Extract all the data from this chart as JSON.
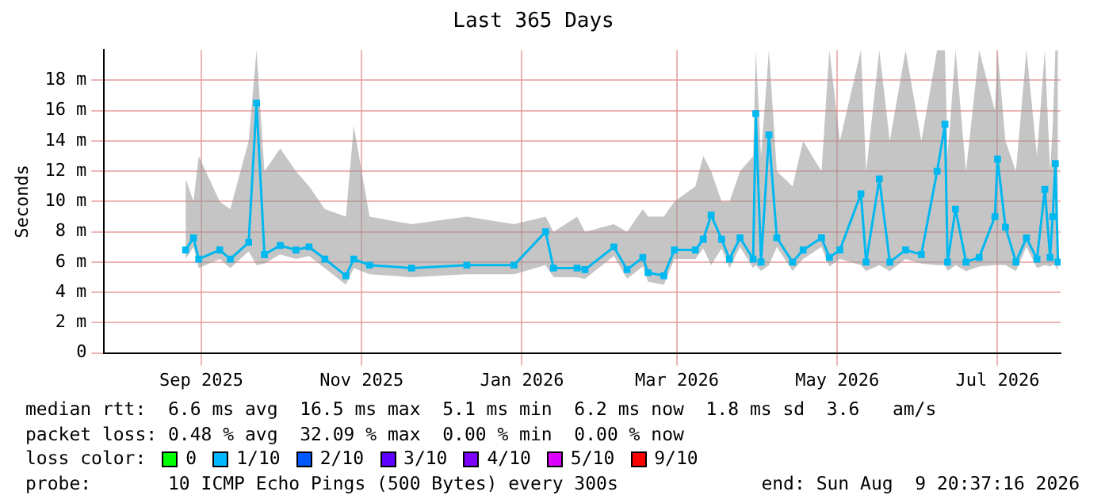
{
  "chart_data": {
    "type": "line",
    "title": "Last 365 Days",
    "ylabel": "Seconds",
    "xlim": [
      "2025-08-10",
      "2026-08-09"
    ],
    "xticks": [
      {
        "value": "2025-09-16",
        "label": "Sep 2025"
      },
      {
        "value": "2025-11-16",
        "label": "Nov 2025"
      },
      {
        "value": "2026-01-16",
        "label": "Jan 2026"
      },
      {
        "value": "2026-03-16",
        "label": "Mar 2026"
      },
      {
        "value": "2026-05-16",
        "label": "May 2026"
      },
      {
        "value": "2026-07-16",
        "label": "Jul 2026"
      }
    ],
    "ylim": [
      0,
      20
    ],
    "yticks": [
      0,
      {
        "value": 2,
        "label": "2 m"
      },
      {
        "value": 4,
        "label": "4 m"
      },
      {
        "value": 6,
        "label": "6 m"
      },
      {
        "value": 8,
        "label": "8 m"
      },
      {
        "value": 10,
        "label": "10 m"
      },
      {
        "value": 12,
        "label": "12 m"
      },
      {
        "value": 14,
        "label": "14 m"
      },
      {
        "value": 16,
        "label": "16 m"
      },
      {
        "value": 18,
        "label": "18 m"
      }
    ],
    "grid": true,
    "marker": "square",
    "line_style": "solid",
    "x": [
      "2025-09-10",
      "2025-09-13",
      "2025-09-15",
      "2025-09-23",
      "2025-09-27",
      "2025-10-04",
      "2025-10-07",
      "2025-10-10",
      "2025-10-16",
      "2025-10-22",
      "2025-10-27",
      "2025-11-02",
      "2025-11-10",
      "2025-11-13",
      "2025-11-19",
      "2025-12-05",
      "2025-12-26",
      "2026-01-13",
      "2026-01-25",
      "2026-01-28",
      "2026-02-06",
      "2026-02-09",
      "2026-02-20",
      "2026-02-25",
      "2026-03-03",
      "2026-03-05",
      "2026-03-11",
      "2026-03-15",
      "2026-03-23",
      "2026-03-26",
      "2026-03-29",
      "2026-04-02",
      "2026-04-05",
      "2026-04-09",
      "2026-04-14",
      "2026-04-15",
      "2026-04-17",
      "2026-04-20",
      "2026-04-23",
      "2026-04-29",
      "2026-05-03",
      "2026-05-10",
      "2026-05-13",
      "2026-05-17",
      "2026-05-25",
      "2026-05-27",
      "2026-06-01",
      "2026-06-05",
      "2026-06-11",
      "2026-06-17",
      "2026-06-23",
      "2026-06-26",
      "2026-06-27",
      "2026-06-30",
      "2026-07-04",
      "2026-07-09",
      "2026-07-15",
      "2026-07-16",
      "2026-07-19",
      "2026-07-23",
      "2026-07-27",
      "2026-07-31",
      "2026-08-03",
      "2026-08-05",
      "2026-08-06",
      "2026-08-07",
      "2026-08-08"
    ],
    "series": [
      {
        "color": "#00b8f0",
        "values": [
          6.8,
          7.6,
          6.2,
          6.8,
          6.2,
          7.3,
          16.5,
          6.5,
          7.1,
          6.8,
          7.0,
          6.2,
          5.1,
          6.2,
          5.8,
          5.6,
          5.8,
          5.8,
          8.0,
          5.6,
          5.6,
          5.5,
          7.0,
          5.5,
          6.3,
          5.3,
          5.1,
          6.8,
          6.8,
          7.5,
          9.1,
          7.5,
          6.2,
          7.6,
          6.2,
          15.8,
          6.0,
          14.4,
          7.6,
          6.0,
          6.8,
          7.6,
          6.3,
          6.8,
          10.5,
          6.0,
          11.5,
          6.0,
          6.8,
          6.5,
          12.0,
          15.1,
          6.0,
          9.5,
          6.0,
          6.3,
          9.0,
          12.8,
          8.3,
          6.0,
          7.6,
          6.2,
          10.8,
          6.3,
          9.0,
          12.5,
          6.0
        ],
        "lower": [
          6.2,
          7.0,
          5.6,
          6.2,
          5.6,
          6.7,
          5.8,
          5.9,
          6.5,
          6.2,
          6.4,
          5.6,
          4.5,
          5.6,
          5.2,
          5.0,
          5.2,
          5.2,
          5.8,
          5.0,
          5.0,
          4.9,
          6.4,
          4.9,
          5.7,
          4.7,
          4.5,
          6.2,
          6.2,
          6.9,
          5.8,
          6.9,
          5.6,
          7.0,
          5.6,
          5.8,
          5.4,
          5.8,
          7.0,
          5.4,
          6.2,
          7.0,
          5.7,
          6.2,
          5.8,
          5.4,
          5.8,
          5.4,
          6.2,
          5.9,
          5.8,
          5.8,
          5.4,
          5.8,
          5.4,
          5.7,
          5.8,
          5.8,
          5.8,
          5.4,
          7.0,
          5.6,
          5.8,
          5.7,
          5.8,
          5.8,
          5.4
        ],
        "upper": [
          11.5,
          10,
          13,
          10,
          9.5,
          14,
          20,
          12,
          13.5,
          12,
          11,
          9.5,
          9,
          15,
          9,
          8.5,
          9,
          8.5,
          9,
          8,
          9,
          8,
          8.5,
          8,
          9.5,
          9,
          9,
          10,
          11,
          13,
          12,
          10,
          10,
          12,
          13,
          20,
          13,
          20,
          12,
          11,
          14,
          12,
          20,
          14,
          20,
          12,
          20,
          14,
          20,
          14,
          20,
          20,
          13,
          20,
          12,
          20,
          16,
          20,
          14,
          12,
          20,
          13,
          20,
          12,
          15,
          20,
          20
        ]
      }
    ],
    "annotations": [
      "median rtt:  6.6 ms avg  16.5 ms max  5.1 ms min  6.2 ms now  1.8 ms sd  3.6   am/s",
      "packet loss: 0.48 % avg  32.09 % max  0.00 % min  0.00 % now",
      "loss color:",
      "0",
      "1/10",
      "2/10",
      "3/10",
      "4/10",
      "5/10",
      "9/10",
      "probe:       10 ICMP Echo Pings (500 Bytes) every 300s",
      "end: Sun Aug  9 20:37:16 2026"
    ]
  }
}
